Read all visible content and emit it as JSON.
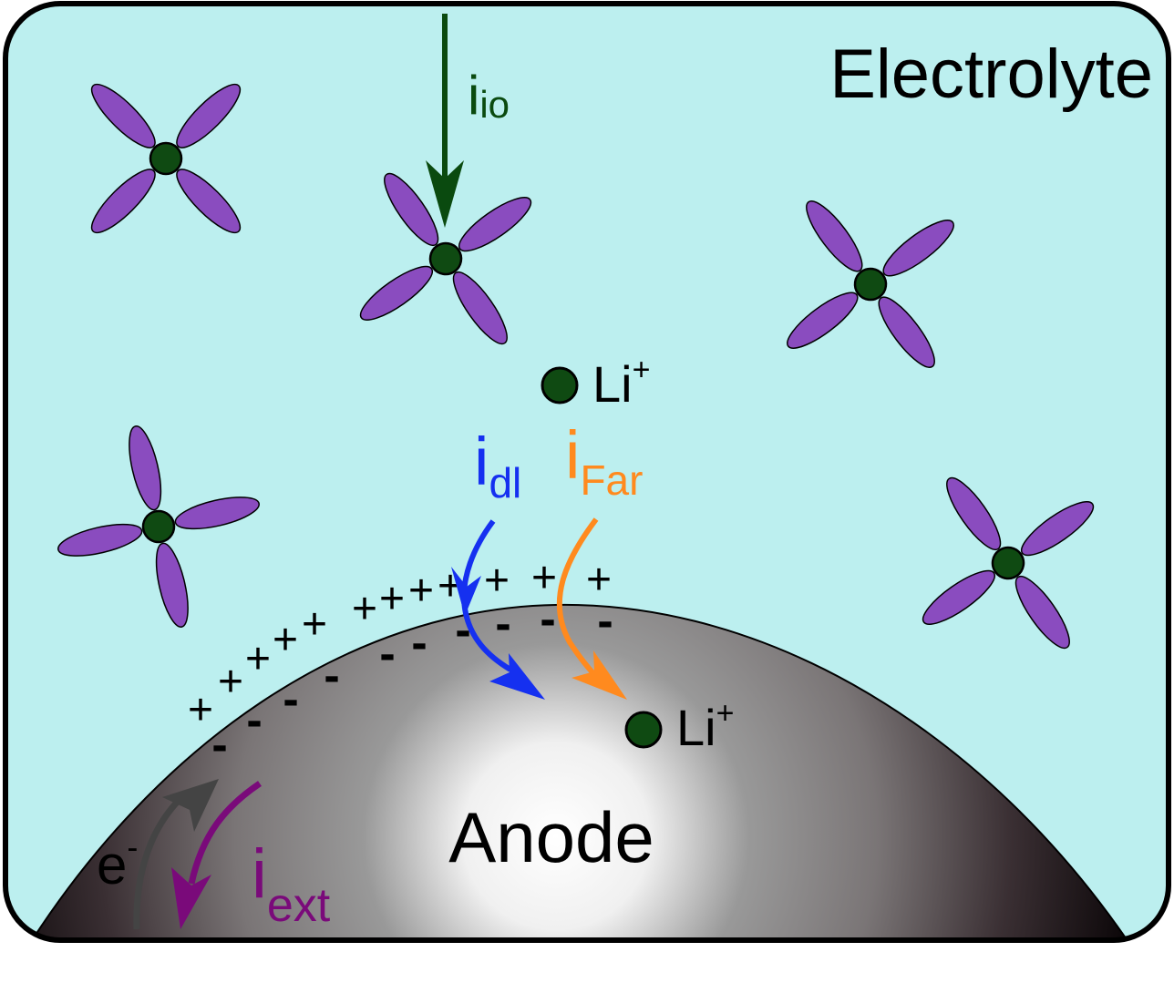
{
  "labels": {
    "electrolyte": "Electrolyte",
    "anode": "Anode",
    "li_upper": "Li",
    "li_upper_sup": "+",
    "li_lower": "Li",
    "li_lower_sup": "+",
    "electron": "e",
    "electron_sup": "-"
  },
  "currents": {
    "io": {
      "base": "i",
      "sub": "io"
    },
    "dl": {
      "base": "i",
      "sub": "dl"
    },
    "far": {
      "base": "i",
      "sub": "Far"
    },
    "ext": {
      "base": "i",
      "sub": "ext"
    }
  },
  "colors": {
    "electrolyte_bg": "#bcefef",
    "border": "#000000",
    "molecule_petal": "#8a4cbf",
    "molecule_core": "#0f4a12",
    "li_ion": "#0f4a12",
    "i_io": "#0a4a0f",
    "i_dl": "#1530f0",
    "i_far": "#ff8a1e",
    "i_ext": "#7a0a7a",
    "electron_arrow": "#444444",
    "anode_dark": "#0a0507",
    "anode_light": "#ffffff"
  },
  "double_layer": {
    "plus_symbol": "+",
    "minus_symbol": "-"
  }
}
